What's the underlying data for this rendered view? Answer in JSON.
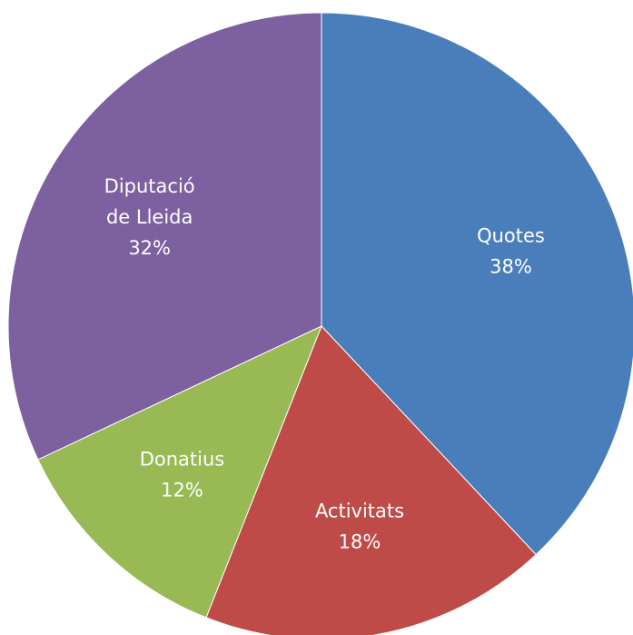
{
  "chart_data": {
    "type": "pie",
    "title": "",
    "slices": [
      {
        "lines": [
          "Quotes",
          "38%"
        ],
        "value": 38,
        "color": "#4A7EBB"
      },
      {
        "lines": [
          "Activitats",
          "18%"
        ],
        "value": 18,
        "color": "#BE4B48"
      },
      {
        "lines": [
          "Donatius",
          "12%"
        ],
        "value": 12,
        "color": "#98B954"
      },
      {
        "lines": [
          "Diputació",
          "de Lleida",
          "32%"
        ],
        "value": 32,
        "color": "#7D60A0"
      }
    ],
    "start_angle_deg": 0,
    "direction": "clockwise",
    "legend": "none",
    "labels": "inside"
  }
}
